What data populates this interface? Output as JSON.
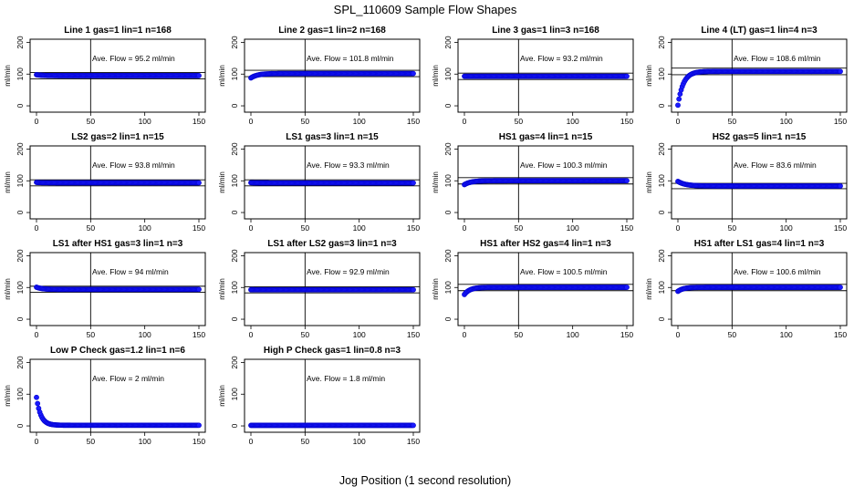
{
  "figure": {
    "title": "SPL_110609  Sample Flow Shapes",
    "xlabel": "Jog Position (1 second resolution)"
  },
  "style": {
    "point_color": "#1a1aff",
    "point_stroke": "#0000cc",
    "line_color": "#000000"
  },
  "chart_data": [
    {
      "type": "scatter",
      "title": "Line 1 gas=1 lin=1 n=168",
      "annotation": "Ave. Flow = 95.2  ml/min",
      "ylabel": "ml/min",
      "xlim": [
        0,
        150
      ],
      "ylim": [
        -20,
        210
      ],
      "xticks": [
        0,
        50,
        100,
        150
      ],
      "yticks": [
        0,
        100,
        200
      ],
      "vline": 50,
      "ref_lines": [
        105,
        85
      ],
      "flow": {
        "start": 98,
        "end": 95.2,
        "tau": 5
      }
    },
    {
      "type": "scatter",
      "title": "Line 2 gas=1 lin=2 n=168",
      "annotation": "Ave. Flow = 101.8  ml/min",
      "ylabel": "ml/min",
      "xlim": [
        0,
        150
      ],
      "ylim": [
        -20,
        210
      ],
      "xticks": [
        0,
        50,
        100,
        150
      ],
      "yticks": [
        0,
        100,
        200
      ],
      "vline": 50,
      "ref_lines": [
        112,
        92
      ],
      "flow": {
        "start": 88,
        "end": 101.8,
        "tau": 6
      }
    },
    {
      "type": "scatter",
      "title": "Line 3 gas=1 lin=3 n=168",
      "annotation": "Ave. Flow = 93.2  ml/min",
      "ylabel": "ml/min",
      "xlim": [
        0,
        150
      ],
      "ylim": [
        -20,
        210
      ],
      "xticks": [
        0,
        50,
        100,
        150
      ],
      "yticks": [
        0,
        100,
        200
      ],
      "vline": 50,
      "ref_lines": [
        103,
        83
      ],
      "flow": {
        "start": 93.2,
        "end": 93.2,
        "tau": 5
      }
    },
    {
      "type": "scatter",
      "title": "Line 4 (LT) gas=1 lin=4 n=3",
      "annotation": "Ave. Flow = 108.6  ml/min",
      "ylabel": "ml/min",
      "xlim": [
        0,
        150
      ],
      "ylim": [
        -20,
        210
      ],
      "xticks": [
        0,
        50,
        100,
        150
      ],
      "yticks": [
        0,
        100,
        200
      ],
      "vline": 50,
      "ref_lines": [
        119,
        98
      ],
      "flow": {
        "start": 2,
        "end": 108.6,
        "tau": 5
      }
    },
    {
      "type": "scatter",
      "title": "LS2 gas=2 lin=1 n=15",
      "annotation": "Ave. Flow = 93.8  ml/min",
      "ylabel": "ml/min",
      "xlim": [
        0,
        150
      ],
      "ylim": [
        -20,
        210
      ],
      "xticks": [
        0,
        50,
        100,
        150
      ],
      "yticks": [
        0,
        100,
        200
      ],
      "vline": 50,
      "ref_lines": [
        103,
        84
      ],
      "flow": {
        "start": 95,
        "end": 93.8,
        "tau": 4
      }
    },
    {
      "type": "scatter",
      "title": "LS1 gas=3 lin=1 n=15",
      "annotation": "Ave. Flow = 93.3  ml/min",
      "ylabel": "ml/min",
      "xlim": [
        0,
        150
      ],
      "ylim": [
        -20,
        210
      ],
      "xticks": [
        0,
        50,
        100,
        150
      ],
      "yticks": [
        0,
        100,
        200
      ],
      "vline": 50,
      "ref_lines": [
        103,
        84
      ],
      "flow": {
        "start": 94,
        "end": 93.3,
        "tau": 4
      }
    },
    {
      "type": "scatter",
      "title": "HS1 gas=4 lin=1 n=15",
      "annotation": "Ave. Flow = 100.3  ml/min",
      "ylabel": "ml/min",
      "xlim": [
        0,
        150
      ],
      "ylim": [
        -20,
        210
      ],
      "xticks": [
        0,
        50,
        100,
        150
      ],
      "yticks": [
        0,
        100,
        200
      ],
      "vline": 50,
      "ref_lines": [
        110,
        90
      ],
      "flow": {
        "start": 88,
        "end": 100.3,
        "tau": 6
      }
    },
    {
      "type": "scatter",
      "title": "HS2 gas=5 lin=1 n=15",
      "annotation": "Ave. Flow = 83.6  ml/min",
      "ylabel": "ml/min",
      "xlim": [
        0,
        150
      ],
      "ylim": [
        -20,
        210
      ],
      "xticks": [
        0,
        50,
        100,
        150
      ],
      "yticks": [
        0,
        100,
        200
      ],
      "vline": 50,
      "ref_lines": [
        92,
        75
      ],
      "flow": {
        "start": 98,
        "end": 83.6,
        "tau": 7
      }
    },
    {
      "type": "scatter",
      "title": "LS1 after HS1 gas=3 lin=1 n=3",
      "annotation": "Ave. Flow = 94  ml/min",
      "ylabel": "ml/min",
      "xlim": [
        0,
        150
      ],
      "ylim": [
        -20,
        210
      ],
      "xticks": [
        0,
        50,
        100,
        150
      ],
      "yticks": [
        0,
        100,
        200
      ],
      "vline": 50,
      "ref_lines": [
        104,
        85
      ],
      "flow": {
        "start": 101,
        "end": 94,
        "tau": 5
      }
    },
    {
      "type": "scatter",
      "title": "LS1 after LS2 gas=3 lin=1 n=3",
      "annotation": "Ave. Flow = 92.9  ml/min",
      "ylabel": "ml/min",
      "xlim": [
        0,
        150
      ],
      "ylim": [
        -20,
        210
      ],
      "xticks": [
        0,
        50,
        100,
        150
      ],
      "yticks": [
        0,
        100,
        200
      ],
      "vline": 50,
      "ref_lines": [
        102,
        83
      ],
      "flow": {
        "start": 93,
        "end": 92.9,
        "tau": 4
      }
    },
    {
      "type": "scatter",
      "title": "HS1 after HS2 gas=4 lin=1 n=3",
      "annotation": "Ave. Flow = 100.5  ml/min",
      "ylabel": "ml/min",
      "xlim": [
        0,
        150
      ],
      "ylim": [
        -20,
        210
      ],
      "xticks": [
        0,
        50,
        100,
        150
      ],
      "yticks": [
        0,
        100,
        200
      ],
      "vline": 50,
      "ref_lines": [
        110,
        90
      ],
      "flow": {
        "start": 78,
        "end": 100.5,
        "tau": 5
      }
    },
    {
      "type": "scatter",
      "title": "HS1 after LS1 gas=4 lin=1 n=3",
      "annotation": "Ave. Flow = 100.6  ml/min",
      "ylabel": "ml/min",
      "xlim": [
        0,
        150
      ],
      "ylim": [
        -20,
        210
      ],
      "xticks": [
        0,
        50,
        100,
        150
      ],
      "yticks": [
        0,
        100,
        200
      ],
      "vline": 50,
      "ref_lines": [
        110,
        90
      ],
      "flow": {
        "start": 88,
        "end": 100.6,
        "tau": 5
      }
    },
    {
      "type": "scatter",
      "title": "Low P Check gas=1.2 lin=1 n=6",
      "annotation": "Ave. Flow = 2  ml/min",
      "ylabel": "ml/min",
      "xlim": [
        0,
        150
      ],
      "ylim": [
        -20,
        210
      ],
      "xticks": [
        0,
        50,
        100,
        150
      ],
      "yticks": [
        0,
        100,
        200
      ],
      "vline": 50,
      "ref_lines": [],
      "flow": {
        "start": 90,
        "end": 2,
        "tau": 4
      }
    },
    {
      "type": "scatter",
      "title": "High P Check gas=1 lin=0.8 n=3",
      "annotation": "Ave. Flow = 1.8  ml/min",
      "ylabel": "ml/min",
      "xlim": [
        0,
        150
      ],
      "ylim": [
        -20,
        210
      ],
      "xticks": [
        0,
        50,
        100,
        150
      ],
      "yticks": [
        0,
        100,
        200
      ],
      "vline": 50,
      "ref_lines": [],
      "flow": {
        "start": 1.8,
        "end": 1.8,
        "tau": 4
      }
    }
  ]
}
